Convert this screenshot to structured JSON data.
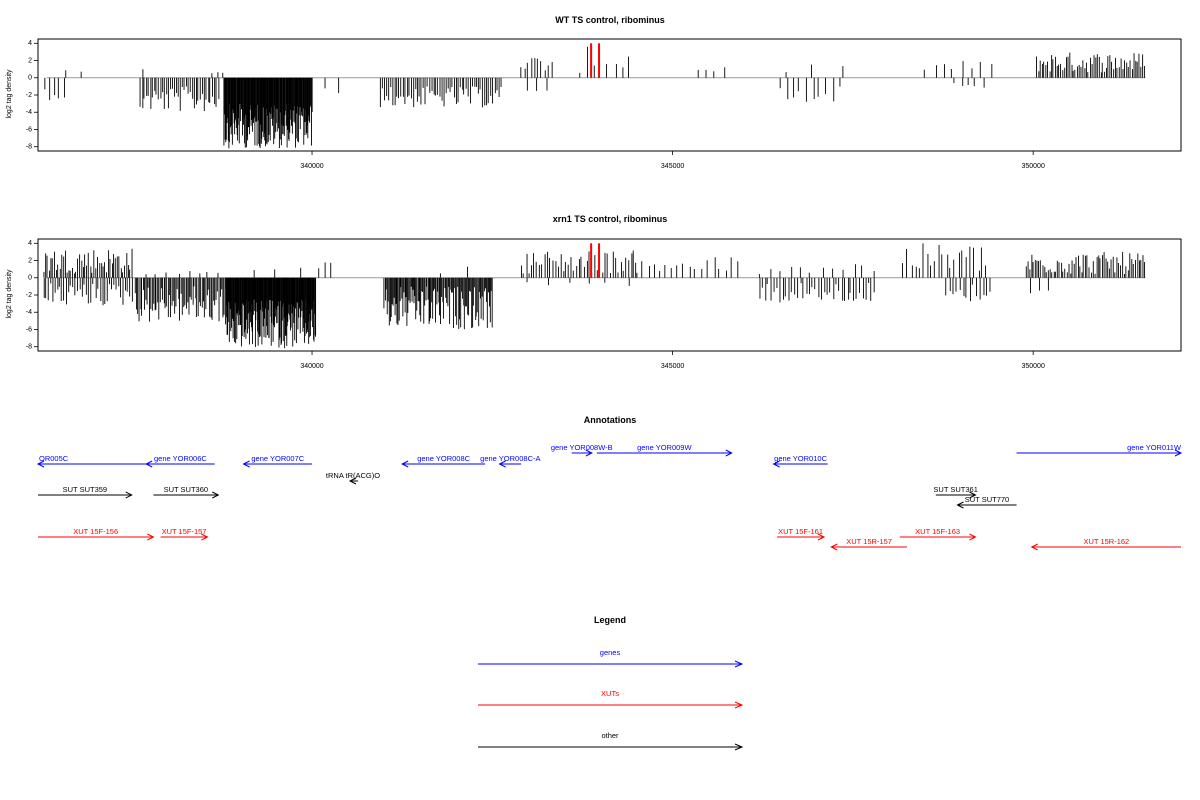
{
  "chart_data": [
    {
      "type": "bar",
      "title": "WT TS control, ribominus",
      "ylabel": "log2 tag density",
      "ylim": [
        -8.5,
        4.5
      ],
      "yticks": [
        -8,
        -6,
        -4,
        -2,
        0,
        2,
        4
      ],
      "xlim": [
        336200,
        352050
      ],
      "xticks": [
        340000,
        345000,
        350000
      ],
      "grid": false,
      "highlight": {
        "color": "#ff0000",
        "positions": [
          343870,
          343980
        ],
        "values": [
          4.0,
          4.0
        ]
      },
      "segments": [
        {
          "start": 336290,
          "end": 336560,
          "sign": -1,
          "lo": 0.8,
          "hi": 2.6,
          "n": 5
        },
        {
          "start": 336570,
          "end": 336780,
          "sign": 1,
          "lo": 0.5,
          "hi": 1.6,
          "n": 2
        },
        {
          "start": 337600,
          "end": 337700,
          "sign": 1,
          "lo": 0.8,
          "hi": 1.6,
          "n": 1
        },
        {
          "start": 337620,
          "end": 338700,
          "sign": -1,
          "lo": 1.0,
          "hi": 4.0,
          "n": 40
        },
        {
          "start": 338620,
          "end": 338760,
          "sign": 1,
          "lo": 0.3,
          "hi": 0.7,
          "n": 3
        },
        {
          "start": 338780,
          "end": 340000,
          "sign": -1,
          "lo": 3.0,
          "hi": 8.2,
          "n": 150
        },
        {
          "start": 340200,
          "end": 340350,
          "sign": -1,
          "lo": 1.0,
          "hi": 2.0,
          "n": 2
        },
        {
          "start": 340950,
          "end": 342620,
          "sign": -1,
          "lo": 1.0,
          "hi": 3.5,
          "n": 60
        },
        {
          "start": 342900,
          "end": 343320,
          "sign": 1,
          "lo": 0.6,
          "hi": 2.6,
          "n": 10
        },
        {
          "start": 343000,
          "end": 343250,
          "sign": -1,
          "lo": 0.8,
          "hi": 1.6,
          "n": 3
        },
        {
          "start": 343700,
          "end": 344400,
          "sign": 1,
          "lo": 0.5,
          "hi": 3.6,
          "n": 8
        },
        {
          "start": 345350,
          "end": 345700,
          "sign": 1,
          "lo": 0.5,
          "hi": 1.5,
          "n": 4
        },
        {
          "start": 346500,
          "end": 347300,
          "sign": -1,
          "lo": 1.0,
          "hi": 2.8,
          "n": 10
        },
        {
          "start": 346500,
          "end": 347300,
          "sign": 1,
          "lo": 0.5,
          "hi": 1.8,
          "n": 3
        },
        {
          "start": 348500,
          "end": 349400,
          "sign": 1,
          "lo": 0.5,
          "hi": 2.0,
          "n": 8
        },
        {
          "start": 348900,
          "end": 349300,
          "sign": -1,
          "lo": 0.5,
          "hi": 1.2,
          "n": 5
        },
        {
          "start": 350050,
          "end": 351550,
          "sign": 1,
          "lo": 0.6,
          "hi": 3.0,
          "n": 60
        }
      ]
    },
    {
      "type": "bar",
      "title": "xrn1 TS control, ribominus",
      "ylabel": "log2 tag density",
      "ylim": [
        -8.5,
        4.5
      ],
      "yticks": [
        -8,
        -6,
        -4,
        -2,
        0,
        2,
        4
      ],
      "xlim": [
        336200,
        352050
      ],
      "xticks": [
        340000,
        345000,
        350000
      ],
      "grid": false,
      "highlight": {
        "color": "#ff0000",
        "positions": [
          343870,
          343980
        ],
        "values": [
          4.0,
          4.0
        ]
      },
      "segments": [
        {
          "start": 336280,
          "end": 337500,
          "sign": 1,
          "lo": 0.5,
          "hi": 3.5,
          "n": 50
        },
        {
          "start": 336280,
          "end": 337500,
          "sign": -1,
          "lo": 0.6,
          "hi": 3.3,
          "n": 40
        },
        {
          "start": 337550,
          "end": 338800,
          "sign": -1,
          "lo": 1.0,
          "hi": 5.2,
          "n": 70
        },
        {
          "start": 337700,
          "end": 338700,
          "sign": 1,
          "lo": 0.3,
          "hi": 0.8,
          "n": 8
        },
        {
          "start": 338800,
          "end": 340050,
          "sign": -1,
          "lo": 2.5,
          "hi": 8.2,
          "n": 170
        },
        {
          "start": 339200,
          "end": 339900,
          "sign": 1,
          "lo": 0.5,
          "hi": 2.0,
          "n": 3
        },
        {
          "start": 340100,
          "end": 340250,
          "sign": 1,
          "lo": 0.8,
          "hi": 2.0,
          "n": 3
        },
        {
          "start": 341000,
          "end": 342500,
          "sign": -1,
          "lo": 1.0,
          "hi": 6.0,
          "n": 110
        },
        {
          "start": 341800,
          "end": 342200,
          "sign": 1,
          "lo": 0.5,
          "hi": 1.8,
          "n": 2
        },
        {
          "start": 342900,
          "end": 344500,
          "sign": 1,
          "lo": 0.5,
          "hi": 3.2,
          "n": 45
        },
        {
          "start": 343000,
          "end": 344400,
          "sign": -1,
          "lo": 0.5,
          "hi": 1.0,
          "n": 6
        },
        {
          "start": 344500,
          "end": 345900,
          "sign": 1,
          "lo": 0.4,
          "hi": 2.5,
          "n": 18
        },
        {
          "start": 346200,
          "end": 347800,
          "sign": -1,
          "lo": 0.5,
          "hi": 3.0,
          "n": 40
        },
        {
          "start": 346200,
          "end": 347800,
          "sign": 1,
          "lo": 0.4,
          "hi": 2.0,
          "n": 12
        },
        {
          "start": 348200,
          "end": 349350,
          "sign": 1,
          "lo": 0.5,
          "hi": 4.0,
          "n": 22
        },
        {
          "start": 348800,
          "end": 349400,
          "sign": -1,
          "lo": 0.5,
          "hi": 2.8,
          "n": 14
        },
        {
          "start": 349900,
          "end": 351550,
          "sign": 1,
          "lo": 0.4,
          "hi": 3.0,
          "n": 65
        },
        {
          "start": 349950,
          "end": 350200,
          "sign": -1,
          "lo": 0.5,
          "hi": 1.8,
          "n": 3
        }
      ]
    }
  ],
  "annotations": {
    "title": "Annotations",
    "features": [
      {
        "label": "OR005C",
        "start": 336200,
        "end": 337700,
        "strand": "-",
        "color": "#0000ff",
        "row": 1,
        "label_at": "start"
      },
      {
        "label": "gene YOR006C",
        "start": 337700,
        "end": 338650,
        "strand": "-",
        "color": "#0000ff",
        "row": 1
      },
      {
        "label": "gene YOR007C",
        "start": 339050,
        "end": 340000,
        "strand": "-",
        "color": "#0000ff",
        "row": 1
      },
      {
        "label": "gene YOR008C",
        "start": 341250,
        "end": 342400,
        "strand": "-",
        "color": "#0000ff",
        "row": 1
      },
      {
        "label": "gene YOR008C-A",
        "start": 342600,
        "end": 342900,
        "strand": "-",
        "color": "#0000ff",
        "row": 1
      },
      {
        "label": "gene YOR008W-B",
        "start": 343600,
        "end": 343880,
        "strand": "+",
        "color": "#0000ff",
        "row": 0
      },
      {
        "label": "gene YOR009W",
        "start": 343950,
        "end": 345820,
        "strand": "+",
        "color": "#0000ff",
        "row": 0
      },
      {
        "label": "gene YOR010C",
        "start": 346400,
        "end": 347150,
        "strand": "-",
        "color": "#0000ff",
        "row": 1
      },
      {
        "label": "gene YOR011W",
        "start": 349770,
        "end": 352050,
        "strand": "+",
        "color": "#0000ff",
        "row": 0,
        "label_at": "end"
      },
      {
        "label": "tRNA tR(ACG)O",
        "start": 340330,
        "end": 340400,
        "strand": "-",
        "color": "#000000",
        "row": 2
      },
      {
        "label": "SUT SUT359",
        "start": 336200,
        "end": 337500,
        "strand": "+",
        "color": "#000000",
        "row": 3
      },
      {
        "label": "SUT SUT360",
        "start": 337800,
        "end": 338700,
        "strand": "+",
        "color": "#000000",
        "row": 3
      },
      {
        "label": "SUT SUT361",
        "start": 348650,
        "end": 349200,
        "strand": "+",
        "color": "#000000",
        "row": 3
      },
      {
        "label": "SUT SUT770",
        "start": 348950,
        "end": 349770,
        "strand": "-",
        "color": "#000000",
        "row": 4
      },
      {
        "label": "XUT 15F-156",
        "start": 336200,
        "end": 337800,
        "strand": "+",
        "color": "#ff0000",
        "row": 5
      },
      {
        "label": "XUT 15F-157",
        "start": 337900,
        "end": 338550,
        "strand": "+",
        "color": "#ff0000",
        "row": 5
      },
      {
        "label": "XUT 15F-161",
        "start": 346450,
        "end": 347100,
        "strand": "+",
        "color": "#ff0000",
        "row": 5
      },
      {
        "label": "XUT 15F-163",
        "start": 348150,
        "end": 349200,
        "strand": "+",
        "color": "#ff0000",
        "row": 5
      },
      {
        "label": "XUT 15R-157",
        "start": 347200,
        "end": 348250,
        "strand": "-",
        "color": "#ff0000",
        "row": 6
      },
      {
        "label": "XUT 15R-162",
        "start": 349980,
        "end": 352050,
        "strand": "-",
        "color": "#ff0000",
        "row": 6
      }
    ]
  },
  "legend": {
    "title": "Legend",
    "items": [
      {
        "label": "genes",
        "color": "#0000ff"
      },
      {
        "label": "XUTs",
        "color": "#ff0000"
      },
      {
        "label": "other",
        "color": "#000000"
      }
    ]
  }
}
